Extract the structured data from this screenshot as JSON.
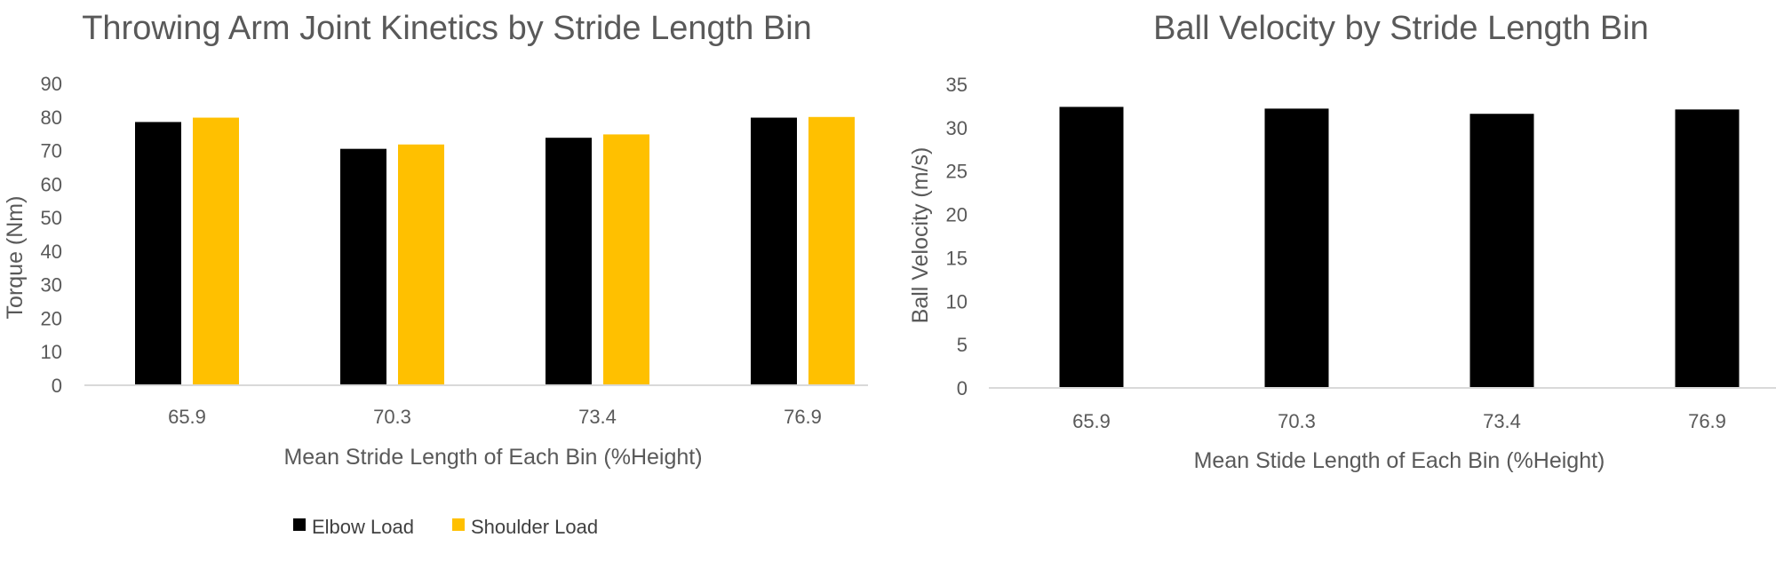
{
  "chart_data": [
    {
      "type": "bar",
      "title": "Throwing Arm Joint Kinetics by Stride Length Bin",
      "xlabel": "Mean Stride Length of Each Bin (%Height)",
      "ylabel": "Torque (Nm)",
      "ylim": [
        0,
        90
      ],
      "yticks": [
        0,
        10,
        20,
        30,
        40,
        50,
        60,
        70,
        80,
        90
      ],
      "categories": [
        "65.9",
        "70.3",
        "73.4",
        "76.9"
      ],
      "series": [
        {
          "name": "Elbow Load",
          "color": "#000000",
          "values": [
            78.5,
            70.5,
            73.8,
            79.8
          ]
        },
        {
          "name": "Shoulder Load",
          "color": "#FFC000",
          "values": [
            79.8,
            71.8,
            74.8,
            80.0
          ]
        }
      ],
      "legend": "bottom",
      "grid": false
    },
    {
      "type": "bar",
      "title": "Ball Velocity by Stride Length Bin",
      "xlabel": "Mean Stide Length of Each Bin (%Height)",
      "ylabel": "Ball Velocity (m/s)",
      "ylim": [
        0,
        35
      ],
      "yticks": [
        0,
        5,
        10,
        15,
        20,
        25,
        30,
        35
      ],
      "categories": [
        "65.9",
        "70.3",
        "73.4",
        "76.9"
      ],
      "series": [
        {
          "color": "#000000",
          "values": [
            32.4,
            32.2,
            31.6,
            32.1
          ]
        }
      ],
      "legend": "none",
      "grid": false
    }
  ]
}
